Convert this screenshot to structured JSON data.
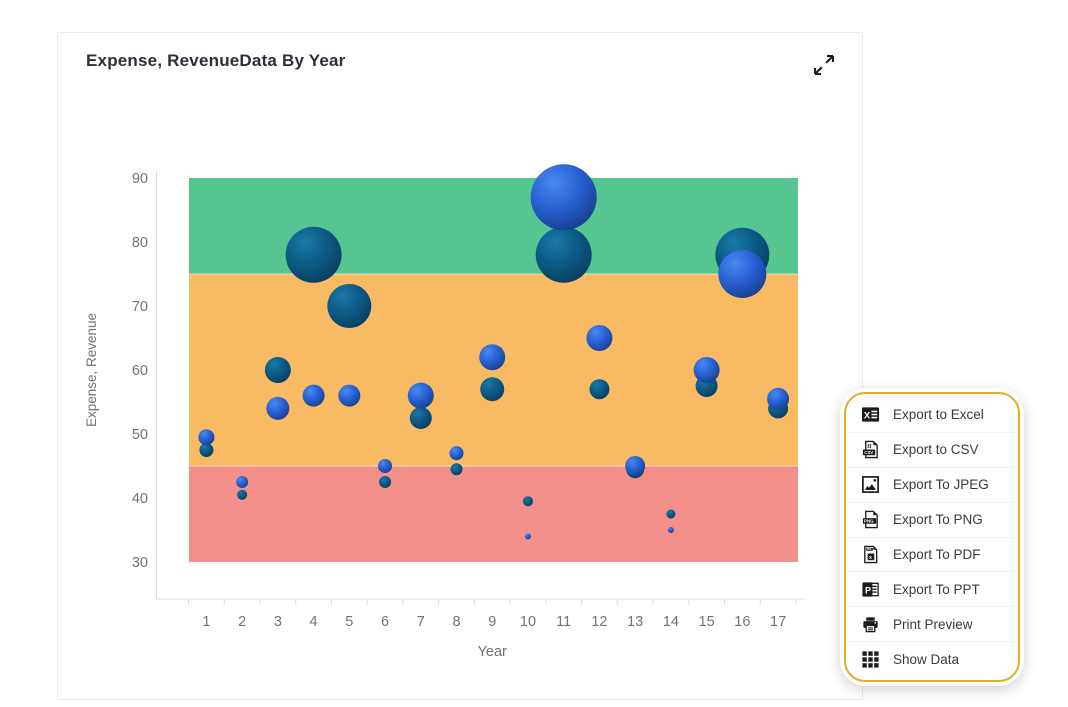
{
  "card": {
    "title": "Expense, RevenueData By Year",
    "expand_icon": "expand-icon"
  },
  "chart_data": {
    "type": "bubble",
    "title": "Expense, RevenueData By Year",
    "xlabel": "Year",
    "ylabel": "Expense, Revenue",
    "x": [
      1,
      2,
      3,
      4,
      5,
      6,
      7,
      8,
      9,
      10,
      11,
      12,
      13,
      14,
      15,
      16,
      17
    ],
    "y_ticks": [
      90,
      80,
      70,
      60,
      50,
      40,
      30
    ],
    "ylim": [
      30,
      90
    ],
    "grid": false,
    "legend": "none",
    "bands": [
      {
        "name": "high",
        "from": 75,
        "to": 90,
        "color": "#56c592"
      },
      {
        "name": "mid",
        "from": 45,
        "to": 75,
        "color": "#f8ba62"
      },
      {
        "name": "low",
        "from": 30,
        "to": 45,
        "color": "#f4908a"
      }
    ],
    "series": [
      {
        "name": "Expense",
        "color": "#0d5c88",
        "values": [
          47.5,
          40.5,
          60,
          78,
          70,
          42.5,
          52.5,
          44.5,
          57,
          39.5,
          78,
          57,
          44.5,
          37.5,
          57.5,
          78,
          54
        ],
        "sizes": [
          7,
          5,
          13,
          28,
          22,
          6,
          11,
          6,
          12,
          5,
          28,
          10,
          9,
          4.5,
          11,
          27,
          10
        ]
      },
      {
        "name": "Revenue",
        "color": "#2a62d2",
        "values": [
          49.5,
          42.5,
          54,
          56,
          56,
          45,
          56,
          47,
          62,
          34,
          87,
          65,
          45,
          35,
          60,
          75,
          55.5
        ],
        "sizes": [
          8,
          6,
          11.5,
          11,
          11,
          7,
          13,
          7,
          13,
          3,
          33,
          13,
          10,
          3,
          13,
          24,
          11
        ]
      }
    ]
  },
  "menu": {
    "border_color": "#e5ac28",
    "items": [
      {
        "icon": "excel-icon",
        "label": "Export to Excel"
      },
      {
        "icon": "csv-icon",
        "label": "Export to CSV"
      },
      {
        "icon": "jpeg-icon",
        "label": "Export To JPEG"
      },
      {
        "icon": "png-icon",
        "label": "Export To PNG"
      },
      {
        "icon": "pdf-icon",
        "label": "Export To PDF"
      },
      {
        "icon": "ppt-icon",
        "label": "Export To PPT"
      },
      {
        "icon": "print-icon",
        "label": "Print Preview"
      },
      {
        "icon": "show-data-icon",
        "label": "Show Data"
      }
    ]
  }
}
